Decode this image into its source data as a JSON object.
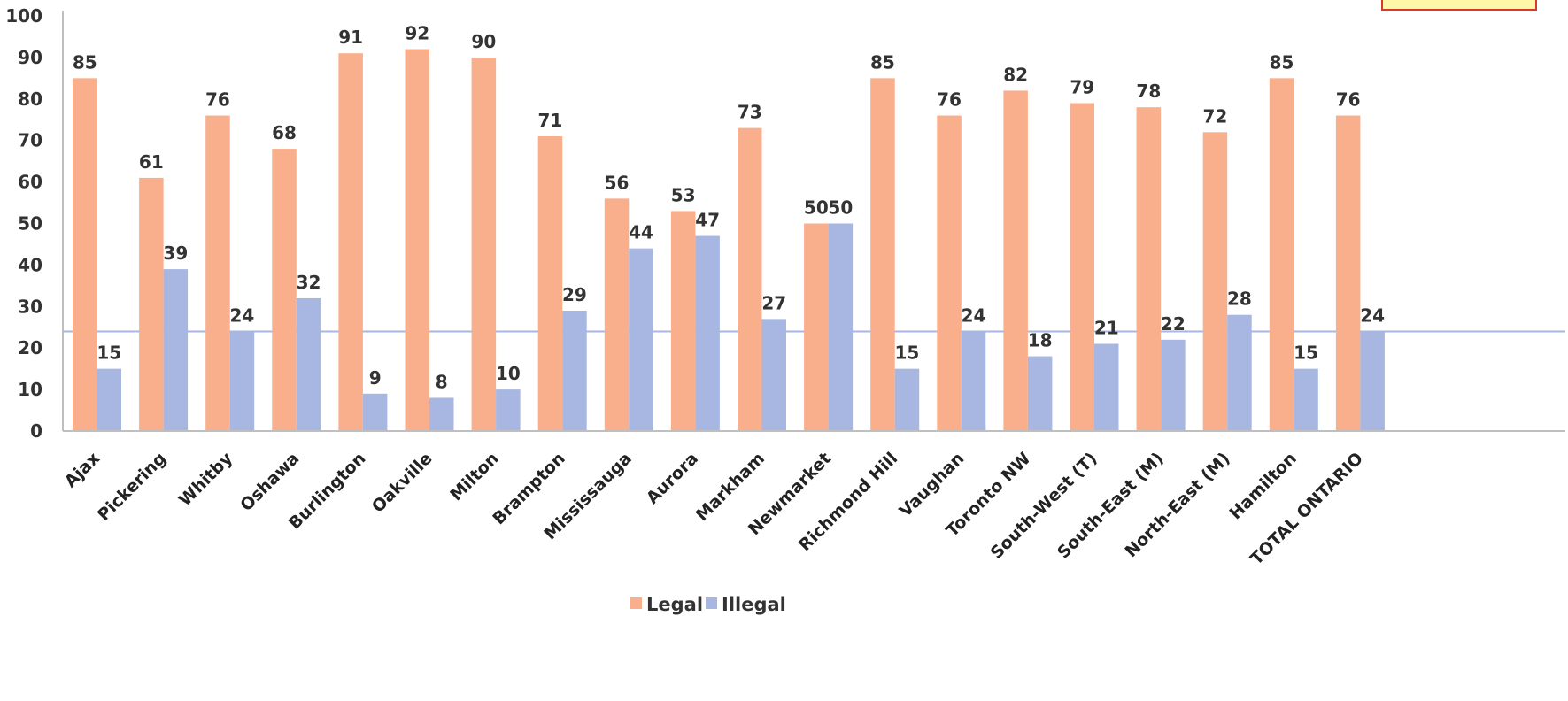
{
  "chart_data": {
    "type": "bar",
    "categories": [
      "Ajax",
      "Pickering",
      "Whitby",
      "Oshawa",
      "Burlington",
      "Oakville",
      "Milton",
      "Brampton",
      "Mississauga",
      "Aurora",
      "Markham",
      "Newmarket",
      "Richmond Hill",
      "Vaughan",
      "Toronto NW",
      "South-West (T)",
      "South-East (M)",
      "North-East (M)",
      "Hamilton",
      "TOTAL ONTARIO"
    ],
    "series": [
      {
        "name": "Legal",
        "color": "#f9ae8c",
        "values": [
          85,
          61,
          76,
          68,
          91,
          92,
          90,
          71,
          56,
          53,
          73,
          50,
          85,
          76,
          82,
          79,
          78,
          72,
          85,
          76
        ]
      },
      {
        "name": "Illegal",
        "color": "#a7b7e1",
        "values": [
          15,
          39,
          24,
          32,
          9,
          8,
          10,
          29,
          44,
          47,
          27,
          50,
          15,
          24,
          18,
          21,
          22,
          28,
          15,
          24
        ]
      }
    ],
    "reference_line": {
      "value": 24,
      "color": "#a7b7e1"
    },
    "yticks": [
      0,
      10,
      20,
      30,
      40,
      50,
      60,
      70,
      80,
      90,
      100
    ],
    "ylim": [
      0,
      100
    ],
    "grid": false,
    "legend": "bottom-center",
    "title": "",
    "xlabel": "",
    "ylabel": ""
  }
}
